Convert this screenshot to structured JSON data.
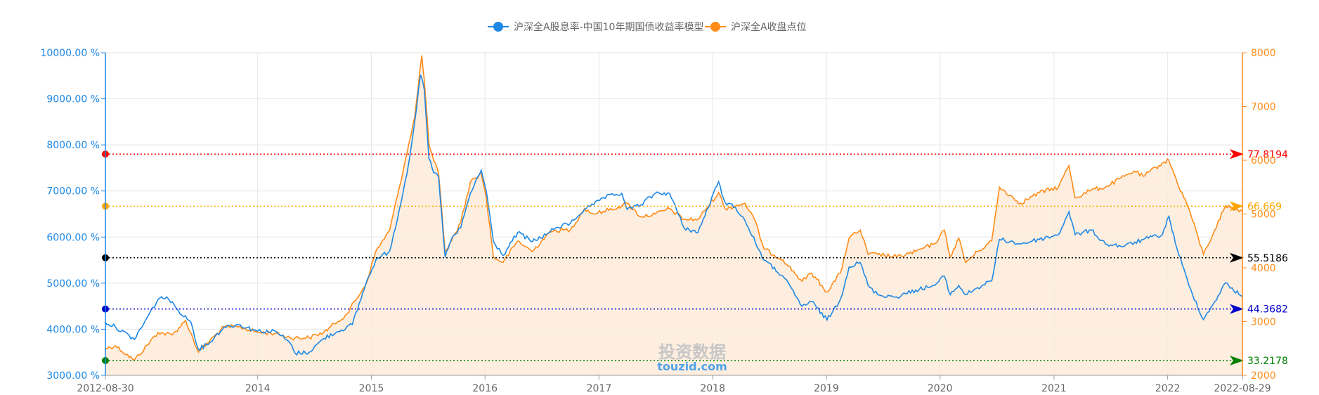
{
  "chart_data": {
    "type": "line",
    "legend": {
      "position": "top",
      "items": [
        {
          "name": "沪深全A股息率-中国10年期国债收益率模型",
          "color": "#1e88e5",
          "axis": "left"
        },
        {
          "name": "沪深全A收盘点位",
          "color": "#ff8c1a",
          "axis": "right"
        }
      ]
    },
    "grid": true,
    "x_ticks": [
      "2012-08-30",
      "2014",
      "2015",
      "2016",
      "2017",
      "2018",
      "2019",
      "2020",
      "2021",
      "2022",
      "2022-08-29"
    ],
    "x_range": [
      "2012-08-30",
      "2022-08-29"
    ],
    "y_left": {
      "range": [
        3000,
        10000
      ],
      "ticks": [
        "3000.00 %",
        "4000.00 %",
        "5000.00 %",
        "6000.00 %",
        "7000.00 %",
        "8000.00 %",
        "9000.00 %",
        "10000.00 %"
      ]
    },
    "y_right": {
      "range": [
        2000,
        8000
      ],
      "ticks": [
        "2000",
        "3000",
        "4000",
        "5000",
        "6000",
        "7000",
        "8000"
      ]
    },
    "reference_lines": [
      {
        "label": "77.8194",
        "value": 7800,
        "color": "#ff0000"
      },
      {
        "label": "66.669",
        "value": 6670,
        "color": "#ffa500"
      },
      {
        "label": "55.5186",
        "value": 5550,
        "color": "#000000"
      },
      {
        "label": "44.3682",
        "value": 4440,
        "color": "#0000cc"
      },
      {
        "label": "33.2178",
        "value": 3320,
        "color": "#008000"
      }
    ],
    "series": [
      {
        "name": "沪深全A股息率-中国10年期国债收益率模型",
        "color": "#1e88e5",
        "axis": "left",
        "points": [
          [
            "2012-08-30",
            4150
          ],
          [
            "2012-10-01",
            4050
          ],
          [
            "2012-12-01",
            3780
          ],
          [
            "2013-02-15",
            4650
          ],
          [
            "2013-03-15",
            4700
          ],
          [
            "2013-04-15",
            4450
          ],
          [
            "2013-06-01",
            4150
          ],
          [
            "2013-06-25",
            3560
          ],
          [
            "2013-08-01",
            3720
          ],
          [
            "2013-09-15",
            4050
          ],
          [
            "2013-11-01",
            4100
          ],
          [
            "2014-01-01",
            3960
          ],
          [
            "2014-03-01",
            3950
          ],
          [
            "2014-04-15",
            3700
          ],
          [
            "2014-05-01",
            3480
          ],
          [
            "2014-06-15",
            3500
          ],
          [
            "2014-08-01",
            3800
          ],
          [
            "2014-09-15",
            3950
          ],
          [
            "2014-11-01",
            4100
          ],
          [
            "2014-12-15",
            5000
          ],
          [
            "2015-01-15",
            5500
          ],
          [
            "2015-03-01",
            5700
          ],
          [
            "2015-04-01",
            6600
          ],
          [
            "2015-05-01",
            7600
          ],
          [
            "2015-05-20",
            8500
          ],
          [
            "2015-06-08",
            9520
          ],
          [
            "2015-06-20",
            9200
          ],
          [
            "2015-07-05",
            7700
          ],
          [
            "2015-07-20",
            7400
          ],
          [
            "2015-08-05",
            7300
          ],
          [
            "2015-08-26",
            5560
          ],
          [
            "2015-09-15",
            5950
          ],
          [
            "2015-10-15",
            6200
          ],
          [
            "2015-11-15",
            6950
          ],
          [
            "2015-12-20",
            7450
          ],
          [
            "2016-01-05",
            7000
          ],
          [
            "2016-01-28",
            5900
          ],
          [
            "2016-02-28",
            5600
          ],
          [
            "2016-04-15",
            6100
          ],
          [
            "2016-06-01",
            5900
          ],
          [
            "2016-07-15",
            6050
          ],
          [
            "2016-08-15",
            6200
          ],
          [
            "2016-10-01",
            6300
          ],
          [
            "2016-11-15",
            6600
          ],
          [
            "2016-12-15",
            6700
          ],
          [
            "2017-01-15",
            6850
          ],
          [
            "2017-03-15",
            6950
          ],
          [
            "2017-04-01",
            6600
          ],
          [
            "2017-05-15",
            6700
          ],
          [
            "2017-07-01",
            6950
          ],
          [
            "2017-08-15",
            6950
          ],
          [
            "2017-10-01",
            6200
          ],
          [
            "2017-11-15",
            6100
          ],
          [
            "2018-01-20",
            7200
          ],
          [
            "2018-02-10",
            6750
          ],
          [
            "2018-03-15",
            6650
          ],
          [
            "2018-04-15",
            6350
          ],
          [
            "2018-06-15",
            5500
          ],
          [
            "2018-08-15",
            5150
          ],
          [
            "2018-10-15",
            4500
          ],
          [
            "2018-11-15",
            4600
          ],
          [
            "2019-01-03",
            4200
          ],
          [
            "2019-02-15",
            4650
          ],
          [
            "2019-03-15",
            5350
          ],
          [
            "2019-04-20",
            5450
          ],
          [
            "2019-05-15",
            4950
          ],
          [
            "2019-06-15",
            4750
          ],
          [
            "2019-08-15",
            4700
          ],
          [
            "2019-10-15",
            4850
          ],
          [
            "2019-12-15",
            4950
          ],
          [
            "2020-01-15",
            5150
          ],
          [
            "2020-02-03",
            4750
          ],
          [
            "2020-03-01",
            4950
          ],
          [
            "2020-03-23",
            4750
          ],
          [
            "2020-05-01",
            4900
          ],
          [
            "2020-06-15",
            5050
          ],
          [
            "2020-07-10",
            5950
          ],
          [
            "2020-09-15",
            5850
          ],
          [
            "2020-11-15",
            5950
          ],
          [
            "2021-01-15",
            6050
          ],
          [
            "2021-02-18",
            6550
          ],
          [
            "2021-03-10",
            6050
          ],
          [
            "2021-05-01",
            6150
          ],
          [
            "2021-06-15",
            5850
          ],
          [
            "2021-08-15",
            5800
          ],
          [
            "2021-10-15",
            5950
          ],
          [
            "2021-12-15",
            6050
          ],
          [
            "2022-01-05",
            6450
          ],
          [
            "2022-01-31",
            5750
          ],
          [
            "2022-03-10",
            4950
          ],
          [
            "2022-04-26",
            4210
          ],
          [
            "2022-06-01",
            4600
          ],
          [
            "2022-07-05",
            5000
          ],
          [
            "2022-08-29",
            4700
          ]
        ]
      },
      {
        "name": "沪深全A收盘点位",
        "color": "#ff8c1a",
        "axis": "right",
        "points": [
          [
            "2012-08-30",
            2500
          ],
          [
            "2012-10-01",
            2550
          ],
          [
            "2012-12-01",
            2280
          ],
          [
            "2013-02-15",
            2800
          ],
          [
            "2013-04-01",
            2750
          ],
          [
            "2013-05-15",
            3020
          ],
          [
            "2013-06-25",
            2430
          ],
          [
            "2013-08-01",
            2650
          ],
          [
            "2013-09-15",
            2900
          ],
          [
            "2013-11-01",
            2900
          ],
          [
            "2014-01-01",
            2800
          ],
          [
            "2014-03-01",
            2780
          ],
          [
            "2014-04-15",
            2700
          ],
          [
            "2014-06-15",
            2700
          ],
          [
            "2014-08-01",
            2800
          ],
          [
            "2014-09-15",
            3000
          ],
          [
            "2014-10-15",
            3150
          ],
          [
            "2014-12-15",
            3700
          ],
          [
            "2015-01-15",
            4300
          ],
          [
            "2015-03-01",
            4700
          ],
          [
            "2015-04-01",
            5500
          ],
          [
            "2015-05-01",
            6300
          ],
          [
            "2015-05-20",
            6800
          ],
          [
            "2015-06-12",
            7950
          ],
          [
            "2015-06-20",
            7500
          ],
          [
            "2015-07-05",
            6300
          ],
          [
            "2015-07-20",
            6000
          ],
          [
            "2015-08-05",
            5750
          ],
          [
            "2015-08-26",
            4300
          ],
          [
            "2015-09-15",
            4500
          ],
          [
            "2015-10-15",
            4850
          ],
          [
            "2015-11-15",
            5600
          ],
          [
            "2015-12-20",
            5750
          ],
          [
            "2016-01-05",
            5300
          ],
          [
            "2016-01-28",
            4200
          ],
          [
            "2016-02-28",
            4100
          ],
          [
            "2016-04-15",
            4500
          ],
          [
            "2016-06-01",
            4300
          ],
          [
            "2016-07-15",
            4600
          ],
          [
            "2016-08-15",
            4700
          ],
          [
            "2016-10-01",
            4700
          ],
          [
            "2016-11-15",
            5100
          ],
          [
            "2016-12-15",
            5000
          ],
          [
            "2017-01-15",
            5050
          ],
          [
            "2017-03-15",
            5150
          ],
          [
            "2017-04-01",
            5200
          ],
          [
            "2017-05-15",
            4950
          ],
          [
            "2017-07-01",
            5000
          ],
          [
            "2017-08-15",
            5100
          ],
          [
            "2017-10-01",
            4900
          ],
          [
            "2017-11-15",
            4900
          ],
          [
            "2018-01-20",
            5400
          ],
          [
            "2018-02-10",
            5100
          ],
          [
            "2018-03-15",
            5150
          ],
          [
            "2018-04-15",
            5200
          ],
          [
            "2018-05-15",
            4900
          ],
          [
            "2018-06-15",
            4350
          ],
          [
            "2018-08-15",
            4150
          ],
          [
            "2018-10-15",
            3750
          ],
          [
            "2018-11-15",
            3900
          ],
          [
            "2019-01-03",
            3550
          ],
          [
            "2019-02-15",
            3900
          ],
          [
            "2019-03-15",
            4550
          ],
          [
            "2019-04-20",
            4700
          ],
          [
            "2019-05-15",
            4250
          ],
          [
            "2019-06-15",
            4250
          ],
          [
            "2019-08-15",
            4200
          ],
          [
            "2019-10-15",
            4300
          ],
          [
            "2019-12-15",
            4450
          ],
          [
            "2020-01-15",
            4700
          ],
          [
            "2020-02-03",
            4200
          ],
          [
            "2020-03-01",
            4550
          ],
          [
            "2020-03-23",
            4100
          ],
          [
            "2020-05-01",
            4300
          ],
          [
            "2020-06-15",
            4500
          ],
          [
            "2020-07-10",
            5500
          ],
          [
            "2020-09-15",
            5200
          ],
          [
            "2020-11-15",
            5400
          ],
          [
            "2021-01-15",
            5500
          ],
          [
            "2021-02-18",
            5900
          ],
          [
            "2021-03-10",
            5300
          ],
          [
            "2021-05-01",
            5450
          ],
          [
            "2021-06-15",
            5500
          ],
          [
            "2021-08-15",
            5700
          ],
          [
            "2021-09-15",
            5800
          ],
          [
            "2021-10-15",
            5700
          ],
          [
            "2021-12-15",
            5950
          ],
          [
            "2022-01-05",
            6000
          ],
          [
            "2022-01-31",
            5600
          ],
          [
            "2022-03-10",
            5100
          ],
          [
            "2022-04-26",
            4250
          ],
          [
            "2022-06-01",
            4700
          ],
          [
            "2022-07-05",
            5150
          ],
          [
            "2022-08-29",
            5050
          ]
        ]
      }
    ]
  },
  "watermark": {
    "line1": "投资数据",
    "line2": "touzid.com"
  }
}
